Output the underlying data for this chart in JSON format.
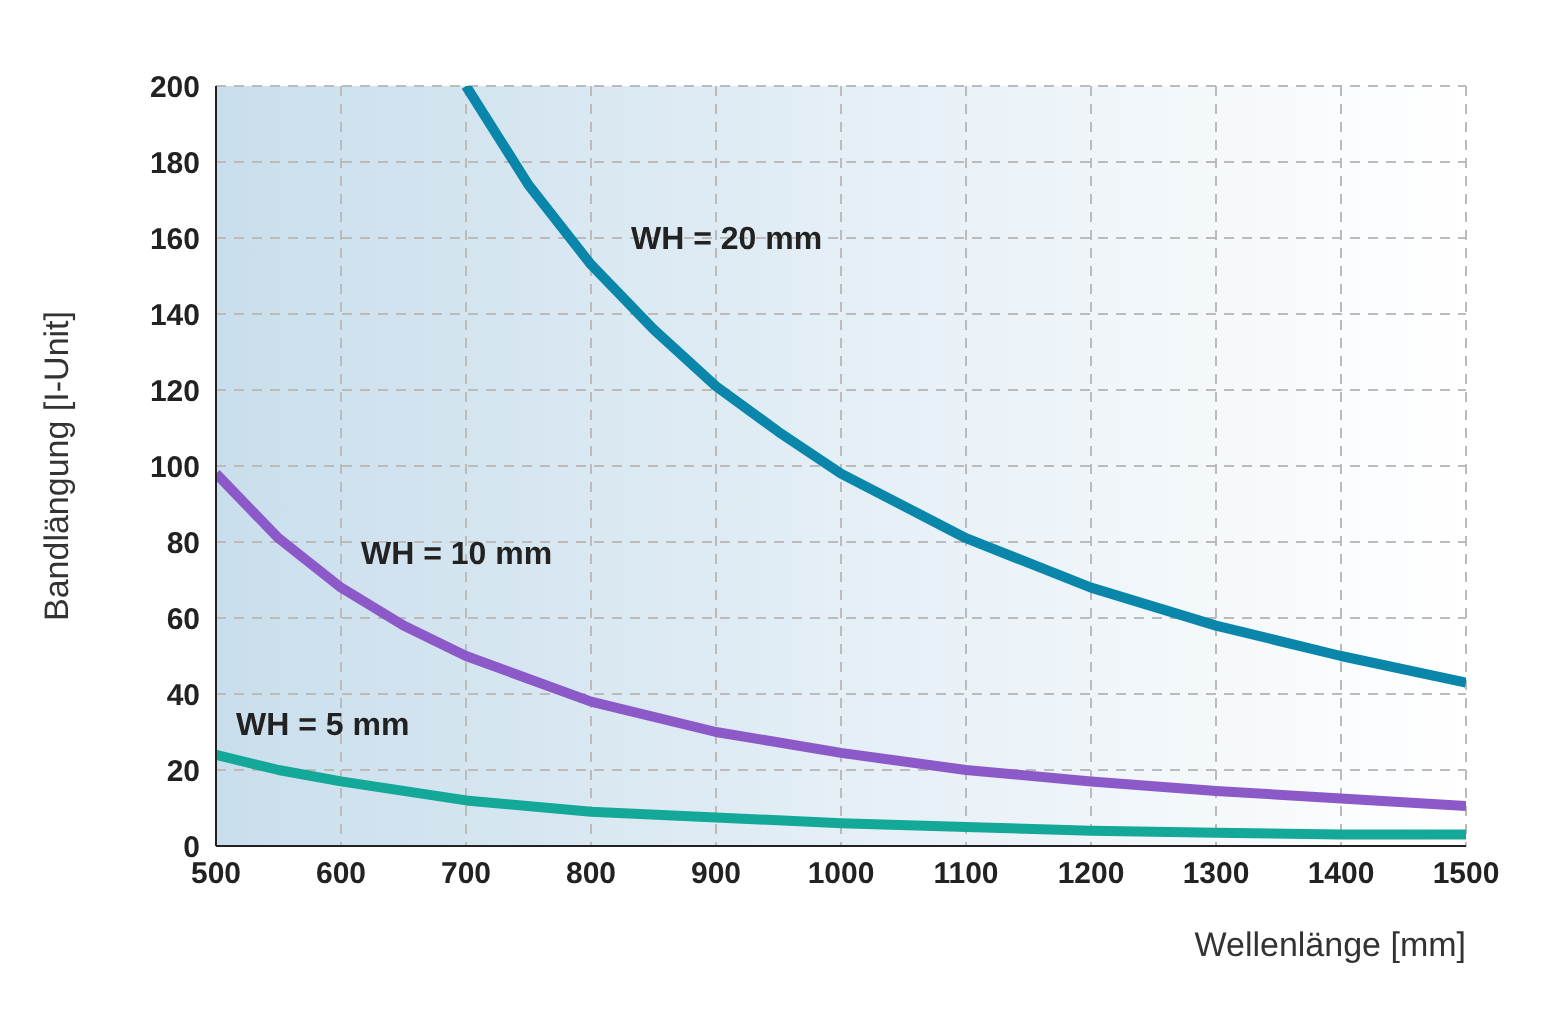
{
  "chart_data": {
    "type": "line",
    "xlabel": "Wellenlänge [mm]",
    "ylabel": "Bandlängung [I-Unit]",
    "xlim": [
      500,
      1500
    ],
    "ylim": [
      0,
      200
    ],
    "xticks": [
      500,
      600,
      700,
      800,
      900,
      1000,
      1100,
      1200,
      1300,
      1400,
      1500
    ],
    "yticks": [
      0,
      20,
      40,
      60,
      80,
      100,
      120,
      140,
      160,
      180,
      200
    ],
    "grid": true,
    "marker": "none",
    "line_style": "solid",
    "series": [
      {
        "name": "WH = 20 mm",
        "color": "#0a86aa",
        "x": [
          700,
          750,
          800,
          850,
          900,
          950,
          1000,
          1100,
          1200,
          1300,
          1400,
          1500
        ],
        "values": [
          200,
          174,
          153,
          136,
          121,
          109,
          98,
          81,
          68,
          58,
          50,
          43
        ]
      },
      {
        "name": "WH = 10 mm",
        "color": "#8c5ac8",
        "x": [
          500,
          550,
          600,
          650,
          700,
          800,
          900,
          1000,
          1100,
          1200,
          1300,
          1400,
          1500
        ],
        "values": [
          98,
          81,
          68,
          58,
          50,
          38,
          30,
          24.5,
          20,
          17,
          14.5,
          12.5,
          10.5
        ]
      },
      {
        "name": "WH = 5 mm",
        "color": "#13a898",
        "x": [
          500,
          550,
          600,
          700,
          800,
          900,
          1000,
          1100,
          1200,
          1300,
          1400,
          1500
        ],
        "values": [
          24,
          20,
          17,
          12,
          9,
          7.5,
          6,
          5,
          4,
          3.5,
          3,
          3
        ]
      }
    ]
  }
}
